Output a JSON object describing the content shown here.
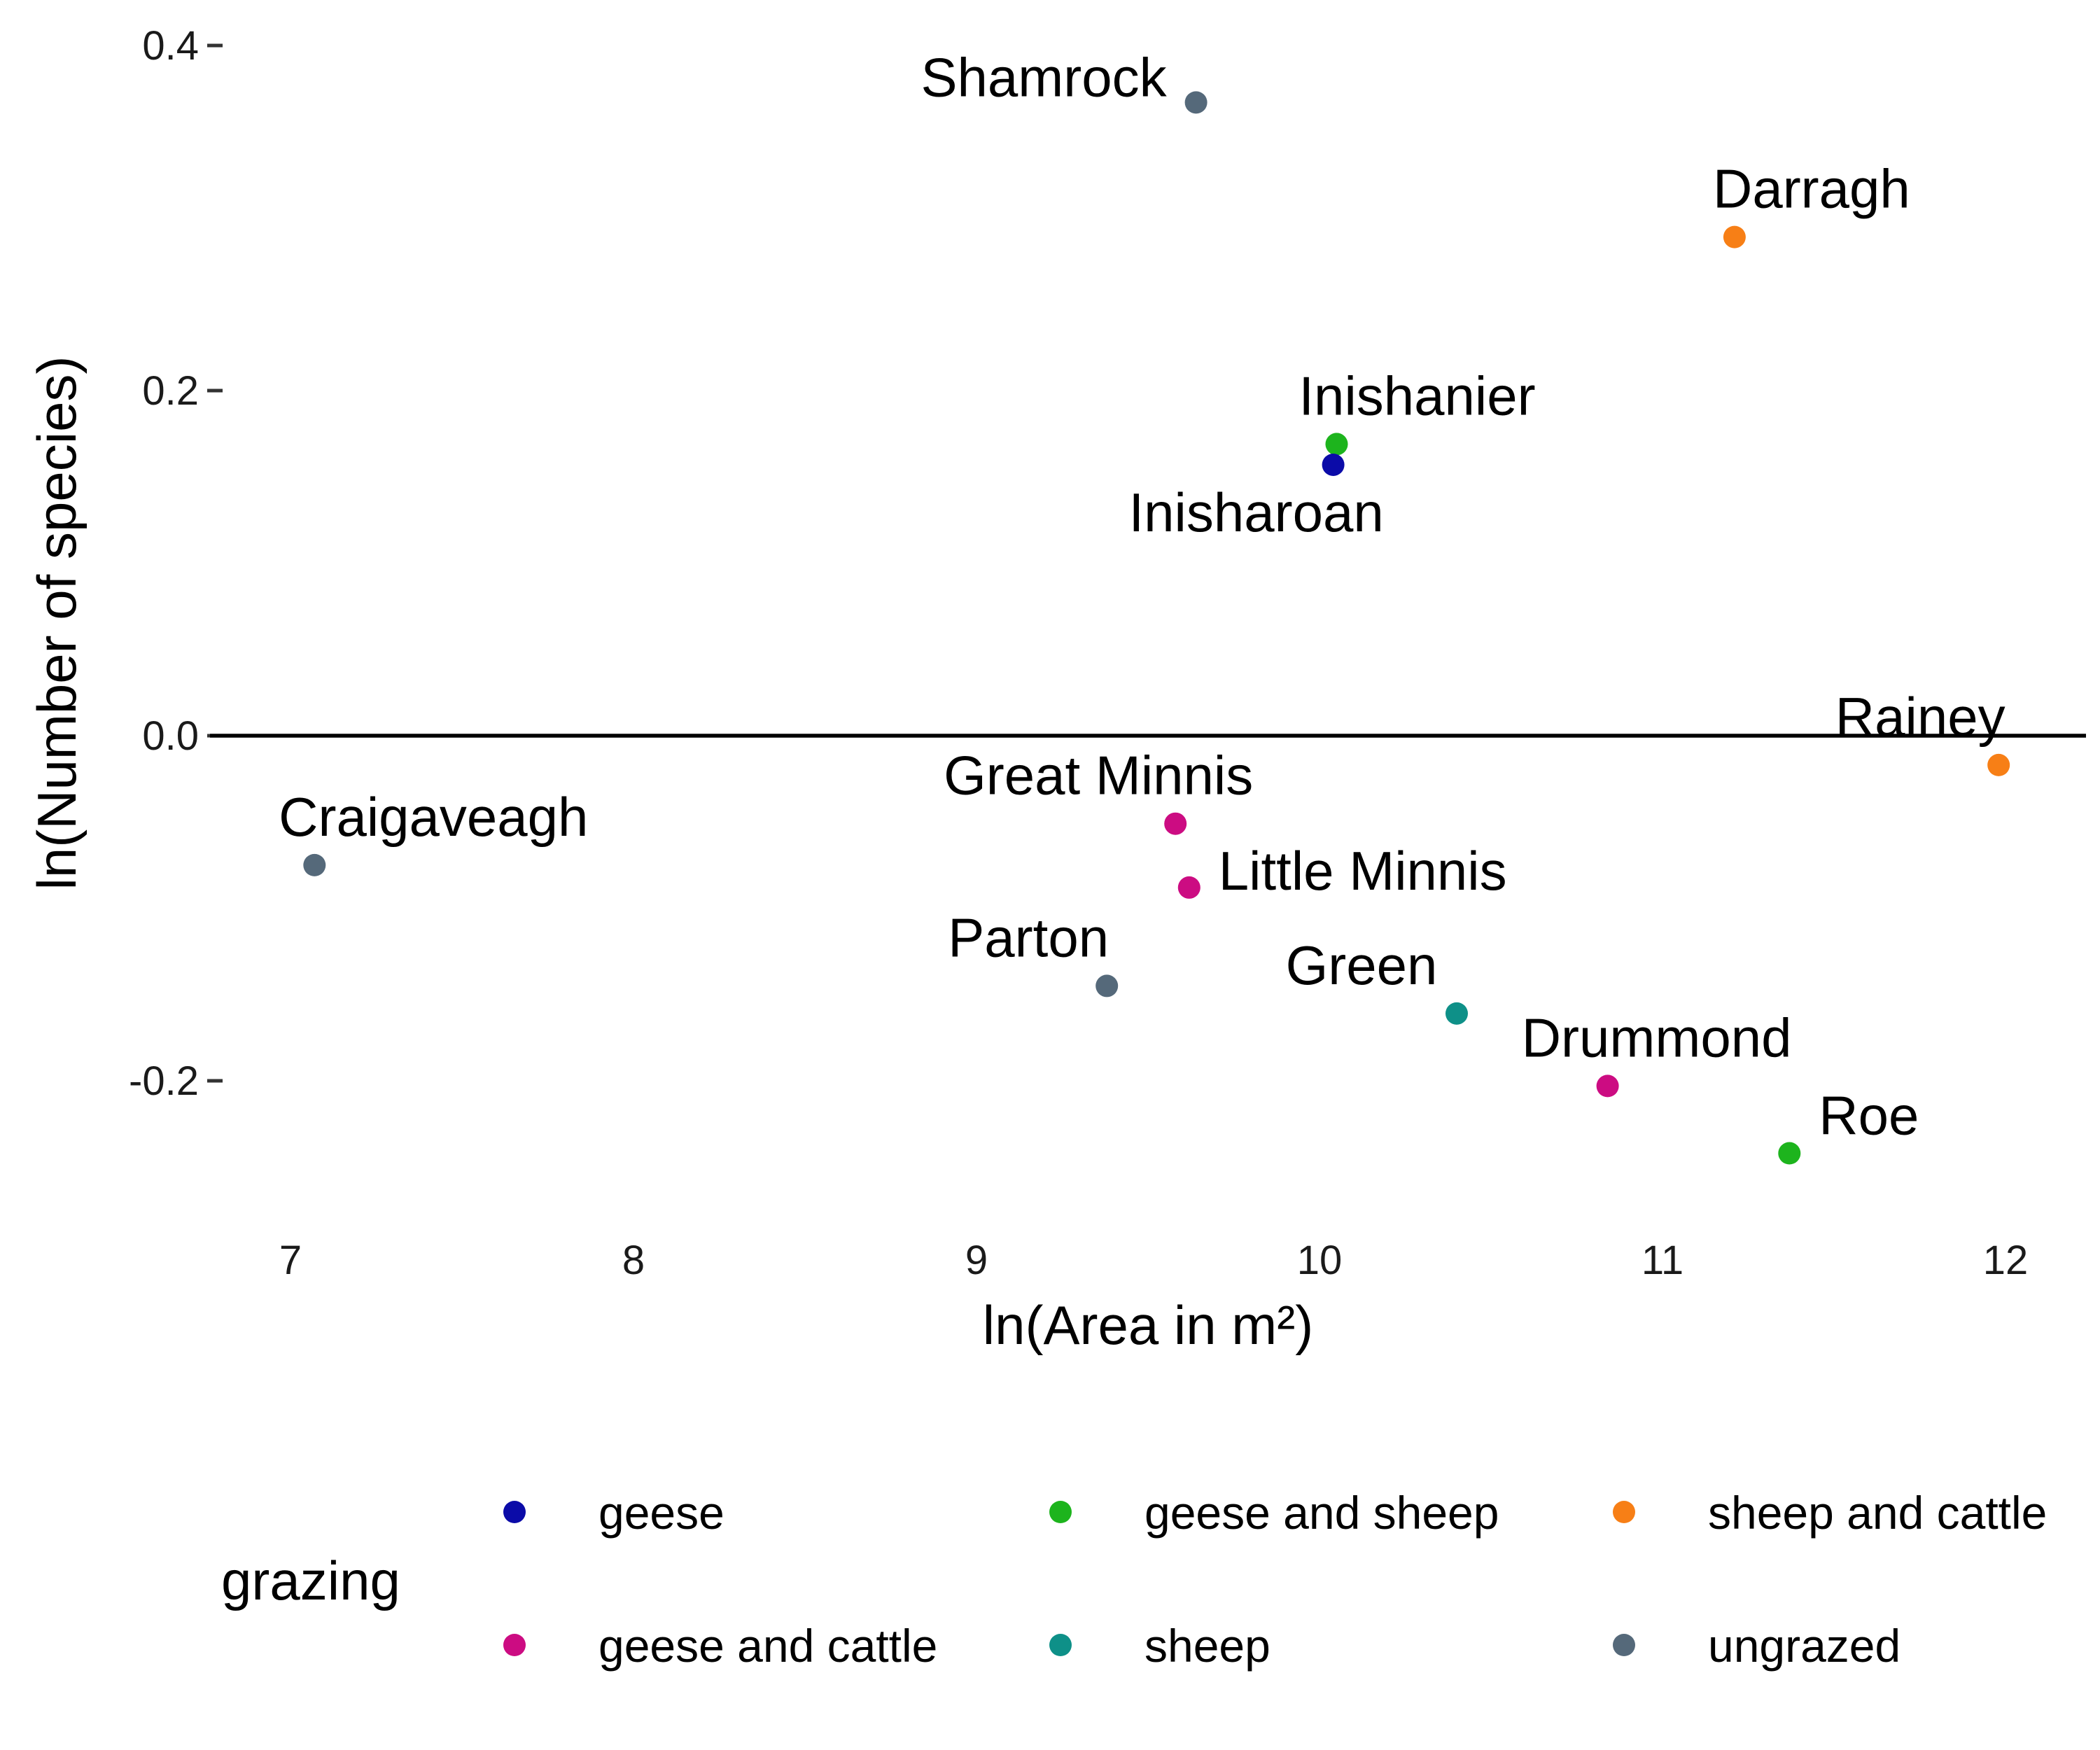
{
  "chart_data": {
    "type": "scatter",
    "xlabel": "ln(Area in m²)",
    "ylabel": "ln(Number of species)",
    "xlim": [
      6.8,
      12.2
    ],
    "ylim": [
      -0.27,
      0.41
    ],
    "x_ticks": [
      7,
      8,
      9,
      10,
      11,
      12
    ],
    "x_tick_labels": [
      "7",
      "8",
      "9",
      "10",
      "11",
      "12"
    ],
    "y_ticks": [
      -0.2,
      0.0,
      0.2,
      0.4
    ],
    "y_tick_labels": [
      "-0.2",
      "0.0",
      "0.2",
      "0.4"
    ],
    "reference_line_y": 0,
    "grid": false,
    "legend": {
      "title": "grazing",
      "position": "bottom",
      "entries": [
        {
          "name": "geese",
          "color": "#0B0BA8"
        },
        {
          "name": "geese and sheep",
          "color": "#1DB41D"
        },
        {
          "name": "sheep and cattle",
          "color": "#F77F16"
        },
        {
          "name": "geese and cattle",
          "color": "#CC0C82"
        },
        {
          "name": "sheep",
          "color": "#0E9088"
        },
        {
          "name": "ungrazed",
          "color": "#55697A"
        }
      ]
    },
    "points": [
      {
        "label": "Shamrock",
        "x": 9.64,
        "y": 0.367,
        "group": "ungrazed"
      },
      {
        "label": "Darragh",
        "x": 11.21,
        "y": 0.289,
        "group": "sheep and cattle"
      },
      {
        "label": "Inishanier",
        "x": 10.05,
        "y": 0.169,
        "group": "geese and sheep"
      },
      {
        "label": "Inisharoan",
        "x": 10.04,
        "y": 0.157,
        "group": "geese"
      },
      {
        "label": "Rainey",
        "x": 11.98,
        "y": -0.017,
        "group": "sheep and cattle"
      },
      {
        "label": "Great Minnis",
        "x": 9.58,
        "y": -0.051,
        "group": "geese and cattle"
      },
      {
        "label": "Craigaveagh",
        "x": 7.07,
        "y": -0.075,
        "group": "ungrazed"
      },
      {
        "label": "Little Minnis",
        "x": 9.62,
        "y": -0.088,
        "group": "geese and cattle"
      },
      {
        "label": "Parton",
        "x": 9.38,
        "y": -0.145,
        "group": "ungrazed"
      },
      {
        "label": "Green",
        "x": 10.4,
        "y": -0.161,
        "group": "sheep"
      },
      {
        "label": "Drummond",
        "x": 10.84,
        "y": -0.203,
        "group": "geese and cattle"
      },
      {
        "label": "Roe",
        "x": 11.37,
        "y": -0.242,
        "group": "geese and sheep"
      }
    ]
  }
}
